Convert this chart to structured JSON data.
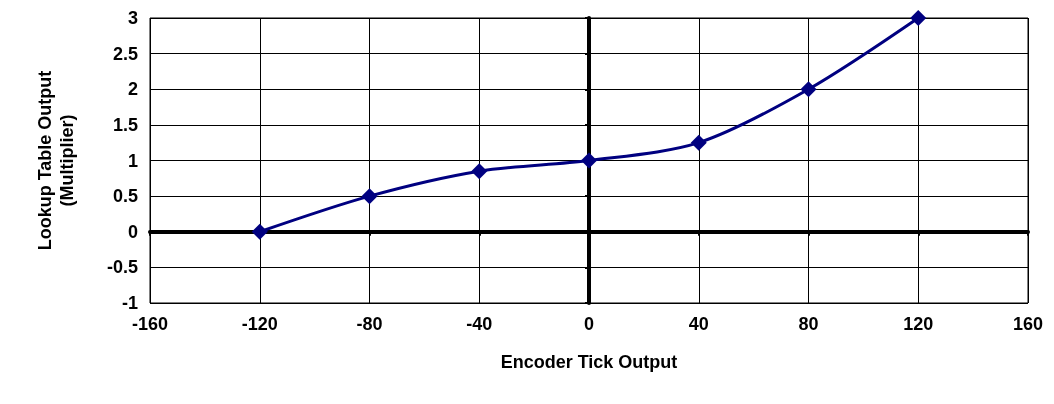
{
  "chart_data": {
    "type": "line",
    "xlabel": "Encoder Tick Output",
    "ylabel": "Lookup Table Output\n(Multiplier)",
    "x": [
      -120,
      -80,
      -40,
      0,
      40,
      80,
      120
    ],
    "series": [
      {
        "color": "#000080",
        "values": [
          0,
          0.5,
          0.85,
          1,
          1.25,
          2,
          3
        ]
      }
    ],
    "xlim": [
      -160,
      160
    ],
    "xticks": [
      -160,
      -120,
      -80,
      -40,
      0,
      40,
      80,
      120,
      160
    ],
    "ylim": [
      -1,
      3
    ],
    "yticks": [
      -1,
      -0.5,
      0,
      0.5,
      1,
      1.5,
      2,
      2.5,
      3
    ],
    "grid": true,
    "marker": "diamond",
    "line_style": "solid"
  }
}
